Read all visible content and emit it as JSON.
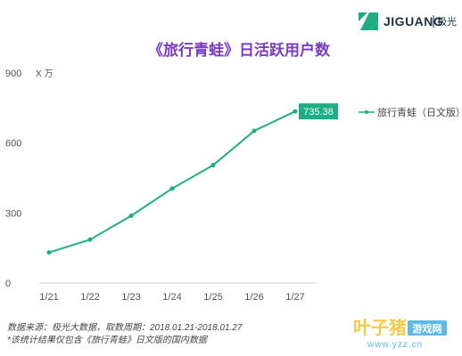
{
  "brand": {
    "name": "JIGUANG",
    "sub": "极光",
    "logo_color": "#1fae83"
  },
  "chart_data": {
    "type": "line",
    "title": "《旅行青蛙》日活跃用户数",
    "unit_label": "X 万",
    "categories": [
      "1/21",
      "1/22",
      "1/23",
      "1/24",
      "1/25",
      "1/26",
      "1/27"
    ],
    "series": [
      {
        "name": "旅行青蛙（日文版）",
        "color": "#1fae83",
        "values": [
          131,
          186,
          288,
          405,
          505,
          652,
          735.38
        ]
      }
    ],
    "ylim": [
      0,
      900
    ],
    "yticks": [
      0,
      300,
      600,
      900
    ],
    "callout": {
      "index": 6,
      "label": "735.38"
    },
    "legend_position": "right",
    "grid": false
  },
  "footer": {
    "line1": "数据来源：极光大数据，取数周期：2018.01.21-2018.01.27",
    "line2": "*该统计结果仅包含《旅行青蛙》日文版的国内数据"
  },
  "watermark": {
    "main": "叶子猪",
    "box": "游戏网",
    "url": "www.yzz.cn"
  }
}
